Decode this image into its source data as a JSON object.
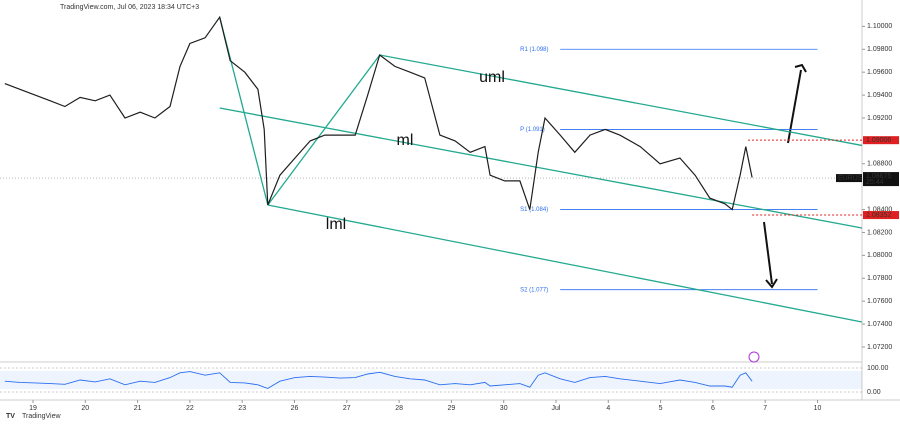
{
  "header": "TradingView.com, Jul 06, 2023 18:34 UTC+3",
  "footer": "TradingView",
  "chart_data": {
    "type": "line",
    "x": [
      -0.54,
      -0.25,
      0.04,
      0.33,
      0.61,
      0.9,
      1.19,
      1.47,
      1.76,
      2.05,
      2.33,
      2.62,
      2.81,
      3.0,
      3.29,
      3.57,
      3.77,
      4.05,
      4.3,
      4.42,
      4.49,
      4.72,
      5.01,
      5.3,
      5.58,
      5.87,
      6.16,
      6.4,
      6.63,
      6.92,
      7.21,
      7.49,
      7.78,
      8.07,
      8.36,
      8.64,
      8.74,
      9.02,
      9.31,
      9.5,
      9.66,
      9.79,
      10.08,
      10.36,
      10.65,
      10.94,
      11.22,
      11.61,
      11.99,
      12.37,
      12.66,
      12.94,
      13.23,
      13.37,
      13.52,
      13.63,
      13.75
    ],
    "series": [
      {
        "name": "EURUSD",
        "color": "#1e1e1e",
        "values": [
          1.095,
          1.0945,
          1.094,
          1.0935,
          1.093,
          1.0938,
          1.0935,
          1.094,
          1.092,
          1.0925,
          1.092,
          1.093,
          1.0965,
          1.0985,
          1.099,
          1.1008,
          1.097,
          1.096,
          1.0945,
          1.091,
          1.0844,
          1.087,
          1.0885,
          1.09,
          1.0905,
          1.0905,
          1.0905,
          1.094,
          1.0975,
          1.0965,
          1.096,
          1.0955,
          1.0905,
          1.09,
          1.089,
          1.0895,
          1.087,
          1.0865,
          1.0865,
          1.084,
          1.089,
          1.092,
          1.0905,
          1.089,
          1.0905,
          1.091,
          1.0905,
          1.0895,
          1.088,
          1.0885,
          1.087,
          1.085,
          1.0845,
          1.084,
          1.087,
          1.0895,
          1.0868
        ]
      }
    ],
    "xlim": [
      -0.631,
      15.851
    ],
    "xticks": [
      {
        "value": 0,
        "label": "19"
      },
      {
        "value": 1,
        "label": "20"
      },
      {
        "value": 2,
        "label": "21"
      },
      {
        "value": 3,
        "label": "22"
      },
      {
        "value": 4,
        "label": "23"
      },
      {
        "value": 5,
        "label": "26"
      },
      {
        "value": 6,
        "label": "27"
      },
      {
        "value": 7,
        "label": "28"
      },
      {
        "value": 8,
        "label": "29"
      },
      {
        "value": 9,
        "label": "30"
      },
      {
        "value": 10,
        "label": "Jul"
      },
      {
        "value": 11,
        "label": "4"
      },
      {
        "value": 12,
        "label": "5"
      },
      {
        "value": 13,
        "label": "6"
      },
      {
        "value": 14,
        "label": "7"
      },
      {
        "value": 15,
        "label": "10"
      }
    ],
    "ylim": [
      1.07086,
      1.10143
    ],
    "yticks": [
      {
        "value": 1.072,
        "label": "1.07200"
      },
      {
        "value": 1.074,
        "label": "1.07400"
      },
      {
        "value": 1.076,
        "label": "1.07600"
      },
      {
        "value": 1.078,
        "label": "1.07800"
      },
      {
        "value": 1.08,
        "label": "1.08000"
      },
      {
        "value": 1.082,
        "label": "1.08200"
      },
      {
        "value": 1.084,
        "label": "1.08400"
      },
      {
        "value": 1.088,
        "label": "1.08800"
      },
      {
        "value": 1.092,
        "label": "1.09200"
      },
      {
        "value": 1.094,
        "label": "1.09400"
      },
      {
        "value": 1.096,
        "label": "1.09600"
      },
      {
        "value": 1.098,
        "label": "1.09800"
      },
      {
        "value": 1.1,
        "label": "1.10000"
      }
    ],
    "trend_lines": [
      {
        "label": "uml",
        "color": "#22a98f",
        "points": [
          [
            6.63,
            1.0975
          ],
          [
            15.85,
            1.0896
          ]
        ]
      },
      {
        "label": "ml",
        "color": "#22a98f",
        "points": [
          [
            3.57,
            1.09287
          ],
          [
            15.85,
            1.08239
          ]
        ]
      },
      {
        "label": "lml",
        "color": "#22a98f",
        "points": [
          [
            4.49,
            1.0844
          ],
          [
            15.85,
            1.07418
          ]
        ]
      },
      {
        "color": "#22a98f",
        "points": [
          [
            3.57,
            1.1008
          ],
          [
            4.49,
            1.0844
          ]
        ]
      },
      {
        "color": "#22a98f",
        "points": [
          [
            4.49,
            1.0844
          ],
          [
            6.63,
            1.0975
          ]
        ]
      }
    ],
    "pivots": [
      {
        "label": "R1 (1.098)",
        "value": 1.098,
        "x": [
          10.08,
          15.0
        ]
      },
      {
        "label": "P (1.091)",
        "value": 1.091,
        "x": [
          10.08,
          15.0
        ]
      },
      {
        "label": "S1 (1.084)",
        "value": 1.084,
        "x": [
          10.08,
          15.0
        ]
      },
      {
        "label": "S2 (1.077)",
        "value": 1.077,
        "x": [
          10.08,
          15.0
        ]
      }
    ],
    "levels": [
      {
        "value": 1.09006,
        "x": 13.67,
        "color": "#e02020"
      },
      {
        "value": 1.08352,
        "x": 13.75,
        "color": "#e02020"
      }
    ],
    "last_price": {
      "symbol": "EURUSD",
      "value": 1.08675,
      "countdown": "25:44"
    },
    "rsi": {
      "ylim": [
        0,
        100
      ],
      "yticks": [
        {
          "value": 100,
          "label": "100.00"
        },
        {
          "value": 0,
          "label": "0.00"
        }
      ],
      "color": "#2a6ef0",
      "values": [
        45,
        40,
        38,
        35,
        32,
        50,
        42,
        55,
        30,
        45,
        40,
        60,
        80,
        85,
        70,
        80,
        40,
        38,
        30,
        20,
        15,
        45,
        60,
        65,
        62,
        58,
        60,
        75,
        82,
        65,
        55,
        50,
        30,
        35,
        30,
        40,
        25,
        30,
        35,
        20,
        70,
        80,
        55,
        40,
        60,
        65,
        55,
        45,
        35,
        50,
        40,
        25,
        25,
        20,
        70,
        80,
        45
      ]
    }
  }
}
